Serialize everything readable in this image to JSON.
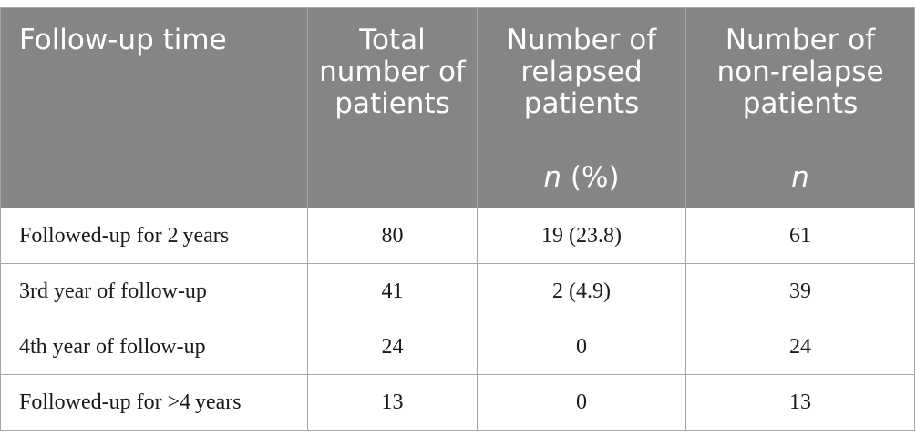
{
  "header": {
    "follow_up_time": "Follow-up time",
    "total_patients": "Total number of patients",
    "relapsed_patients": "Number of relapsed patients",
    "relapsed_unit_n": "n",
    "relapsed_unit_pct": " (%)",
    "non_relapse_patients": "Number of non-relapse patients",
    "non_relapse_unit": "n"
  },
  "rows": [
    {
      "label": "Followed-up for 2 years",
      "total": "80",
      "relapsed": "19 (23.8)",
      "non_relapse": "61"
    },
    {
      "label": "3rd year of follow-up",
      "total": "41",
      "relapsed": "2 (4.9)",
      "non_relapse": "39"
    },
    {
      "label": "4th year of follow-up",
      "total": "24",
      "relapsed": "0",
      "non_relapse": "24"
    },
    {
      "label": "Followed-up for >4 years",
      "total": "13",
      "relapsed": "0",
      "non_relapse": "13"
    }
  ]
}
